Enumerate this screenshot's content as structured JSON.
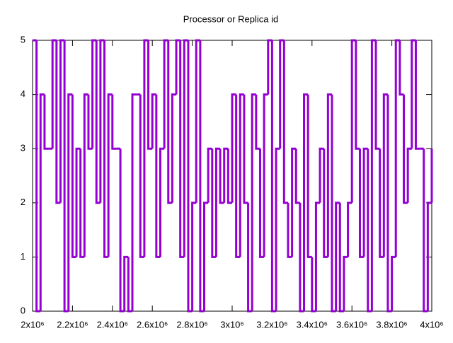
{
  "chart_data": {
    "type": "line",
    "step": true,
    "title": "Processor or Replica id",
    "color": "#9400d3",
    "grid": false,
    "x": [
      2000000,
      2020000,
      2040000,
      2060000,
      2080000,
      2100000,
      2120000,
      2140000,
      2160000,
      2180000,
      2200000,
      2220000,
      2240000,
      2260000,
      2280000,
      2300000,
      2320000,
      2340000,
      2360000,
      2380000,
      2400000,
      2420000,
      2440000,
      2460000,
      2480000,
      2500000,
      2520000,
      2540000,
      2560000,
      2580000,
      2600000,
      2620000,
      2640000,
      2660000,
      2680000,
      2700000,
      2720000,
      2740000,
      2760000,
      2780000,
      2800000,
      2820000,
      2840000,
      2860000,
      2880000,
      2900000,
      2920000,
      2940000,
      2960000,
      2980000,
      3000000,
      3020000,
      3040000,
      3060000,
      3080000,
      3100000,
      3120000,
      3140000,
      3160000,
      3180000,
      3200000,
      3220000,
      3240000,
      3260000,
      3280000,
      3300000,
      3320000,
      3340000,
      3360000,
      3380000,
      3400000,
      3420000,
      3440000,
      3460000,
      3480000,
      3500000,
      3520000,
      3540000,
      3560000,
      3580000,
      3600000,
      3620000,
      3640000,
      3660000,
      3680000,
      3700000,
      3720000,
      3740000,
      3760000,
      3780000,
      3800000,
      3820000,
      3840000,
      3860000,
      3880000,
      3900000,
      3920000,
      3940000,
      3960000,
      3980000,
      4000000
    ],
    "values": [
      5,
      0,
      4,
      3,
      3,
      5,
      2,
      5,
      0,
      4,
      1,
      3,
      1,
      4,
      3,
      5,
      2,
      5,
      1,
      4,
      3,
      3,
      0,
      1,
      0,
      4,
      4,
      1,
      5,
      3,
      4,
      1,
      3,
      5,
      2,
      4,
      5,
      1,
      5,
      0,
      2,
      5,
      0,
      2,
      3,
      1,
      3,
      2,
      3,
      2,
      4,
      1,
      4,
      2,
      0,
      4,
      3,
      1,
      4,
      5,
      0,
      3,
      5,
      2,
      1,
      3,
      2,
      0,
      4,
      1,
      0,
      2,
      3,
      1,
      4,
      0,
      2,
      0,
      1,
      2,
      5,
      3,
      1,
      3,
      0,
      5,
      3,
      1,
      4,
      0,
      1,
      5,
      4,
      2,
      3,
      5,
      3,
      3,
      0,
      2,
      3
    ],
    "xlim": [
      2000000,
      4000000
    ],
    "ylim": [
      0,
      5
    ],
    "xticks": [
      {
        "value": 2000000,
        "label": "2x10⁶"
      },
      {
        "value": 2200000,
        "label": "2.2x10⁶"
      },
      {
        "value": 2400000,
        "label": "2.4x10⁶"
      },
      {
        "value": 2600000,
        "label": "2.6x10⁶"
      },
      {
        "value": 2800000,
        "label": "2.8x10⁶"
      },
      {
        "value": 3000000,
        "label": "3x10⁶"
      },
      {
        "value": 3200000,
        "label": "3.2x10⁶"
      },
      {
        "value": 3400000,
        "label": "3.4x10⁶"
      },
      {
        "value": 3600000,
        "label": "3.6x10⁶"
      },
      {
        "value": 3800000,
        "label": "3.8x10⁶"
      },
      {
        "value": 4000000,
        "label": "4x10⁶"
      }
    ],
    "yticks": [
      0,
      1,
      2,
      3,
      4,
      5
    ]
  }
}
